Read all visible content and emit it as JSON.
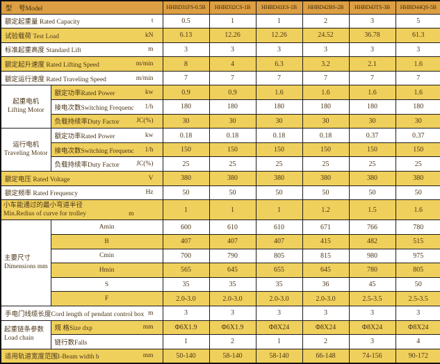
{
  "table": {
    "header": {
      "model_label": "型　号Model",
      "models": [
        "HHBD31FS-0.5B",
        "HHBD32CS-1B",
        "HHBD41ES-1B",
        "HHBD42BS-2B",
        "HHBD43TS-3B",
        "HHBD44QS-5B"
      ]
    },
    "colors": {
      "header_bg": "#dd9f43",
      "stripe_bg": "#f0d05c",
      "border": "#1b1b1b",
      "text": "#4a3517"
    },
    "rows": [
      {
        "label": "额定起重量 Rated Capacity",
        "unit": "t",
        "values": [
          "0.5",
          "1",
          "1",
          "2",
          "3",
          "5"
        ],
        "shaded": false
      },
      {
        "label": "试验载荷 Test Load",
        "unit": "kN",
        "values": [
          "6.13",
          "12.26",
          "12.26",
          "24.52",
          "36.78",
          "61.3"
        ],
        "shaded": true
      },
      {
        "label": "标准起重高度 Standard Lift",
        "unit": "m",
        "values": [
          "3",
          "3",
          "3",
          "3",
          "3",
          "3"
        ],
        "shaded": false
      },
      {
        "label": "额定起升速度  Rated Lifting Speed",
        "unit": "m/min",
        "values": [
          "8",
          "4",
          "6.3",
          "3.2",
          "2.1",
          "1.6"
        ],
        "shaded": true
      },
      {
        "label": "额定运行速度  Rated Traveling Speed",
        "unit": "m/min",
        "values": [
          "7",
          "7",
          "7",
          "7",
          "7",
          "7"
        ],
        "shaded": false
      },
      {
        "sub": true,
        "group": {
          "cn": "起重电机",
          "en": "Lifting Motor",
          "span": 3
        },
        "label": "额定功率Rated Power",
        "unit": "kw",
        "values": [
          "0.9",
          "0.9",
          "1.6",
          "1.6",
          "1.6",
          "1.6"
        ],
        "shaded": true
      },
      {
        "sub": true,
        "label": "接电次数Switching Frequenc",
        "unit": "1/h",
        "values": [
          "180",
          "180",
          "180",
          "180",
          "180",
          "180"
        ],
        "shaded": false
      },
      {
        "sub": true,
        "label": "负载持续率Duty Factor",
        "unit": "JC(%)",
        "values": [
          "30",
          "30",
          "30",
          "30",
          "30",
          "30"
        ],
        "shaded": true
      },
      {
        "sub": true,
        "group": {
          "cn": "运行电机",
          "en": "Traveling Motor",
          "span": 3
        },
        "label": "额定功率Rated Power",
        "unit": "kw",
        "values": [
          "0.18",
          "0.18",
          "0.18",
          "0.18",
          "0.37",
          "0.37"
        ],
        "shaded": false
      },
      {
        "sub": true,
        "label": "接电次数Switching Frequenc",
        "unit": "1/h",
        "values": [
          "150",
          "150",
          "150",
          "150",
          "150",
          "150"
        ],
        "shaded": true
      },
      {
        "sub": true,
        "label": "负载持续率Duty Factor",
        "unit": "JC(%)",
        "values": [
          "25",
          "25",
          "25",
          "25",
          "25",
          "25"
        ],
        "shaded": false
      },
      {
        "label": "额定电压 Rated Voltage",
        "unit": "V",
        "values": [
          "380",
          "380",
          "380",
          "380",
          "380",
          "380"
        ],
        "shaded": true
      },
      {
        "label": "额定频率 Rated Frequency",
        "unit": "Hz",
        "values": [
          "50",
          "50",
          "50",
          "50",
          "50",
          "50"
        ],
        "shaded": false
      },
      {
        "tall": true,
        "label_cn": "小车能通过的最小弯道半径",
        "label_en": "Min.Redius of curve for trolley",
        "unit": "m",
        "values": [
          "1",
          "1",
          "1",
          "1.2",
          "1.5",
          "1.6"
        ],
        "shaded": true
      },
      {
        "sub": true,
        "center": true,
        "group": {
          "cn": "主要尺寸",
          "en": "Dimensions  mm",
          "span": 6,
          "left": true
        },
        "label": "Amin",
        "values": [
          "600",
          "610",
          "610",
          "671",
          "766",
          "780"
        ],
        "shaded": false
      },
      {
        "sub": true,
        "center": true,
        "label": "B",
        "values": [
          "407",
          "407",
          "407",
          "415",
          "482",
          "515"
        ],
        "shaded": true
      },
      {
        "sub": true,
        "center": true,
        "label": "Cmin",
        "values": [
          "700",
          "790",
          "805",
          "815",
          "980",
          "975"
        ],
        "shaded": false
      },
      {
        "sub": true,
        "center": true,
        "label": "Hmin",
        "values": [
          "565",
          "645",
          "655",
          "645",
          "780",
          "805"
        ],
        "shaded": true
      },
      {
        "sub": true,
        "center": true,
        "label": "S",
        "values": [
          "35",
          "35",
          "35",
          "36",
          "45",
          "50"
        ],
        "shaded": false
      },
      {
        "sub": true,
        "center": true,
        "label": "F",
        "values": [
          "2.0-3.0",
          "2.0-3.0",
          "2.0-3.0",
          "2.0-3.0",
          "2.5-3.5",
          "2.5-3.5"
        ],
        "shaded": true
      },
      {
        "label": "手电门线缆长度Cord length of pendant control box",
        "unit": "m",
        "values": [
          "3",
          "3",
          "3",
          "3",
          "3",
          "3"
        ],
        "shaded": false
      },
      {
        "sub": true,
        "group": {
          "cn": "起重链条参数",
          "en": "Load chain",
          "span": 2,
          "left": true
        },
        "label": "规  格Size   dxp",
        "unit": "mm",
        "values": [
          "Φ6X1.9",
          "Φ6X1.9",
          "Φ8X24",
          "Φ8X24",
          "Φ8X24",
          "Φ8X24"
        ],
        "shaded": true
      },
      {
        "sub": true,
        "label": "链行数Falls",
        "unit": "",
        "values": [
          "1",
          "2",
          "1",
          "2",
          "3",
          "4"
        ],
        "shaded": false
      },
      {
        "label": "适用轨道宽度范围I-Beam width     b",
        "unit": "mm",
        "values": [
          "50-140",
          "58-140",
          "58-140",
          "66-148",
          "74-156",
          "90-172"
        ],
        "shaded": true
      }
    ]
  }
}
